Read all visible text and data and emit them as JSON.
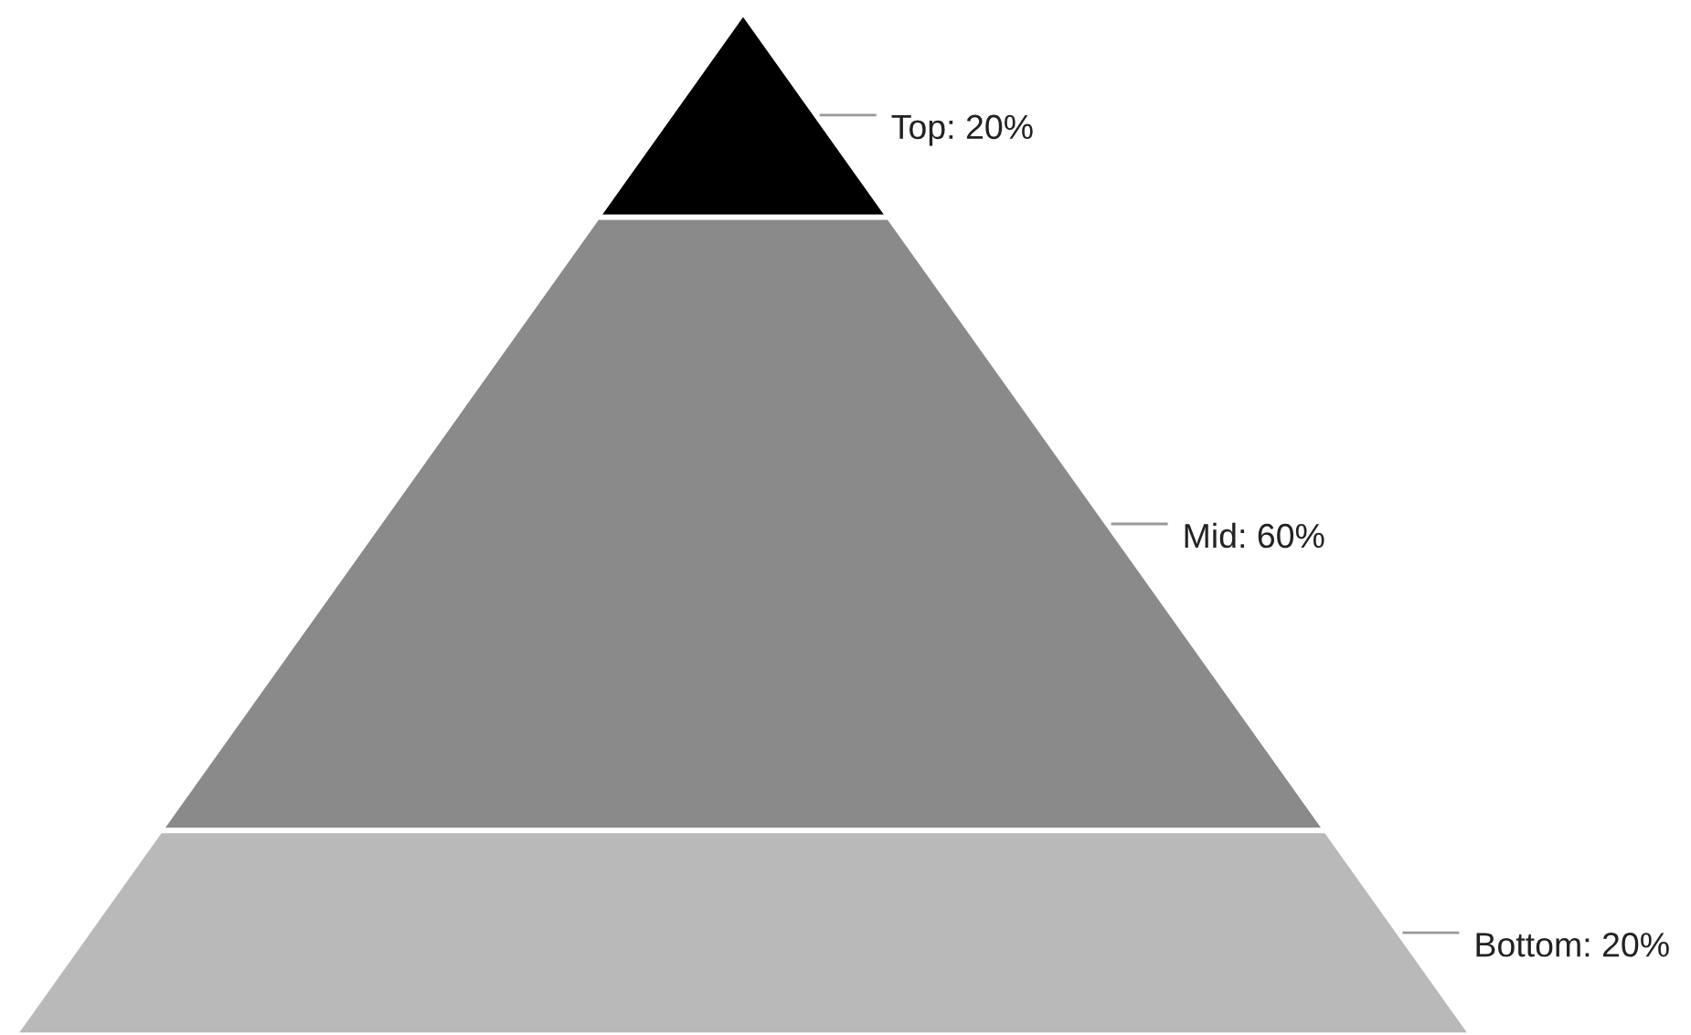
{
  "chart_data": {
    "type": "other",
    "values": [
      20,
      60,
      20
    ],
    "colors": [
      "#000000",
      "#8a8a8a",
      "#b9b9b9"
    ],
    "value_labels": [
      "Top: 20%",
      "Mid: 60%",
      "Bottom: 20%"
    ]
  }
}
